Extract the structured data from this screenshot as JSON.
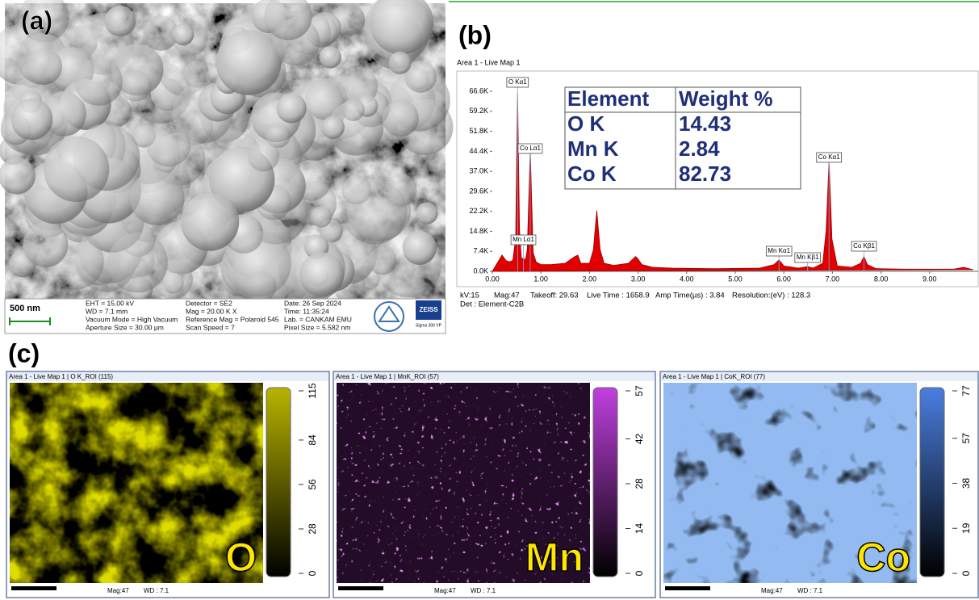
{
  "panel_a": {
    "label": "(a)",
    "scale_bar": "500 nm",
    "info": [
      [
        "EHT = 15.00 kV",
        "WD = 7.1 mm",
        "Vacuum Mode = High Vacuum",
        "Aperture Size = 30.00 µm"
      ],
      [
        "Detector = SE2",
        "Mag = 20.00 K X",
        "Reference Mag = Polaroid 545",
        "Scan Speed = 7"
      ],
      [
        "Date: 26 Sep 2024",
        "Time: 11:35:24",
        "Lab. = CANKAM EMU",
        "Pixel Size = 5.582 nm"
      ]
    ],
    "logo_brand": "ZEISS",
    "logo_model": "Sigma 300 VP"
  },
  "panel_b": {
    "label": "(b)",
    "table": {
      "header": [
        "Element",
        "Weight %"
      ],
      "rows": [
        [
          "O K",
          "14.43"
        ],
        [
          "Mn K",
          "2.84"
        ],
        [
          "Co K",
          "82.73"
        ]
      ]
    },
    "footer": [
      "kV:15",
      "Mag:47",
      "Takeoff: 29.63",
      "Live Time : 1658.9",
      "Amp Time(µs) : 3.84",
      "Resolution:(eV) : 128.3"
    ],
    "detector": "Det : Element-C2B"
  },
  "chart_data": {
    "type": "area",
    "title": "Area 1 - Live Map 1",
    "color": "#e00000",
    "x": [
      0,
      0.1,
      0.2,
      0.28,
      0.35,
      0.42,
      0.48,
      0.52,
      0.56,
      0.6,
      0.64,
      0.68,
      0.72,
      0.78,
      0.84,
      0.9,
      1.0,
      1.2,
      1.5,
      1.7,
      1.76,
      1.82,
      2.0,
      2.08,
      2.15,
      2.22,
      2.3,
      2.5,
      2.8,
      2.95,
      3.0,
      3.08,
      3.3,
      3.7,
      4.5,
      5.5,
      5.8,
      5.9,
      6.0,
      6.3,
      6.49,
      6.6,
      6.8,
      6.87,
      6.93,
      6.99,
      7.1,
      7.4,
      7.58,
      7.65,
      7.72,
      7.9,
      8.5,
      9.5,
      9.7,
      9.9
    ],
    "values": [
      0,
      3000,
      6000,
      4000,
      3500,
      4000,
      12000,
      66000,
      15000,
      4500,
      5000,
      4000,
      8000,
      45000,
      7000,
      3500,
      2500,
      2500,
      3000,
      5500,
      6000,
      3000,
      3000,
      8000,
      22500,
      8000,
      3000,
      2200,
      3000,
      5500,
      4500,
      2500,
      1500,
      1200,
      1000,
      1200,
      2500,
      4200,
      2000,
      1200,
      1800,
      1200,
      3000,
      15000,
      41000,
      12000,
      2000,
      1500,
      3000,
      5500,
      2500,
      1000,
      800,
      800,
      1500,
      600
    ],
    "xlim": [
      0,
      10
    ],
    "ylim": [
      0,
      72000
    ],
    "xticks": [
      {
        "value": 0,
        "label": "0.00"
      },
      {
        "value": 1,
        "label": "1.00"
      },
      {
        "value": 2,
        "label": "2.00"
      },
      {
        "value": 3,
        "label": "3.00"
      },
      {
        "value": 4,
        "label": "4.00"
      },
      {
        "value": 5,
        "label": "5.00"
      },
      {
        "value": 6,
        "label": "6.00"
      },
      {
        "value": 7,
        "label": "7.00"
      },
      {
        "value": 8,
        "label": "8.00"
      },
      {
        "value": 9,
        "label": "9.00"
      }
    ],
    "yticks": [
      {
        "value": 0,
        "label": "0.0K"
      },
      {
        "value": 7400,
        "label": "7.4K"
      },
      {
        "value": 14800,
        "label": "14.8K"
      },
      {
        "value": 22200,
        "label": "22.2K"
      },
      {
        "value": 29600,
        "label": "29.6K"
      },
      {
        "value": 37000,
        "label": "37.0K"
      },
      {
        "value": 44400,
        "label": "44.4K"
      },
      {
        "value": 51800,
        "label": "51.8K"
      },
      {
        "value": 59200,
        "label": "59.2K"
      },
      {
        "value": 66600,
        "label": "66.6K"
      }
    ],
    "peak_labels": [
      {
        "label": "O Kα1",
        "x": 0.52
      },
      {
        "label": "Co Lα1",
        "x": 0.78
      },
      {
        "label": "Mn Lα1",
        "x": 0.64
      },
      {
        "label": "Mn Kα1",
        "x": 5.9
      },
      {
        "label": "Mn Kβ1",
        "x": 6.49
      },
      {
        "label": "Co Kα1",
        "x": 6.93
      },
      {
        "label": "Co Kβ1",
        "x": 7.65
      }
    ]
  },
  "panel_c": {
    "label": "(c)",
    "maps": [
      {
        "title": "Area 1 - Live Map 1 | O K_ROI (115)",
        "scale_ticks": [
          115,
          84,
          56,
          28,
          0
        ],
        "element": "O",
        "color": "#b8b400",
        "mag": "Mag:47",
        "wd": "WD : 7.1"
      },
      {
        "title": "Area 1 - Live Map 1 | MnK_ROI (57)",
        "scale_ticks": [
          57,
          42,
          28,
          14,
          0
        ],
        "element": "Mn",
        "color": "#c040e0",
        "mag": "Mag:47",
        "wd": "WD : 7.1"
      },
      {
        "title": "Area 1 - Live Map 1 | CoK_ROI (77)",
        "scale_ticks": [
          77,
          57,
          38,
          19,
          0
        ],
        "element": "Co",
        "color": "#4a7fe0",
        "mag": "Mag:47",
        "wd": "WD : 7.1"
      }
    ]
  }
}
